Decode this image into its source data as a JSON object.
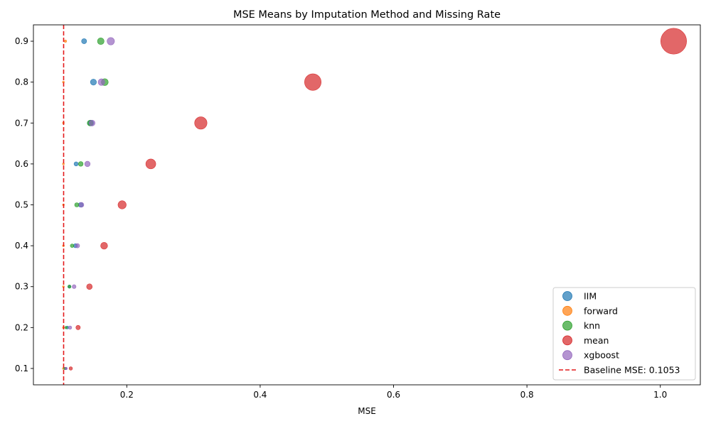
{
  "chart_data": {
    "type": "scatter",
    "title": "MSE Means by Imputation Method and Missing Rate",
    "xlabel": "MSE",
    "ylabel": "",
    "xlim": [
      0.06,
      1.06
    ],
    "ylim": [
      0.06,
      0.94
    ],
    "xticks": [
      0.2,
      0.4,
      0.6,
      0.8,
      1.0
    ],
    "xtick_labels": [
      "0.2",
      "0.4",
      "0.6",
      "0.8",
      "1.0"
    ],
    "yticks": [
      0.1,
      0.2,
      0.3,
      0.4,
      0.5,
      0.6,
      0.7,
      0.8,
      0.9
    ],
    "ytick_labels": [
      "0.1",
      "0.2",
      "0.3",
      "0.4",
      "0.5",
      "0.6",
      "0.7",
      "0.8",
      "0.9"
    ],
    "grid": false,
    "legend_position": "lower-right",
    "marker_size_encodes": "MSE",
    "series": [
      {
        "name": "IIM",
        "color": "#1f77b4",
        "points": [
          {
            "x": 0.108,
            "y": 0.1
          },
          {
            "x": 0.111,
            "y": 0.2
          },
          {
            "x": 0.114,
            "y": 0.3
          },
          {
            "x": 0.123,
            "y": 0.4
          },
          {
            "x": 0.131,
            "y": 0.5
          },
          {
            "x": 0.124,
            "y": 0.6
          },
          {
            "x": 0.146,
            "y": 0.7
          },
          {
            "x": 0.15,
            "y": 0.8
          },
          {
            "x": 0.136,
            "y": 0.9
          }
        ]
      },
      {
        "name": "forward",
        "color": "#ff7f0e",
        "points": [
          {
            "x": 0.105,
            "y": 0.1
          },
          {
            "x": 0.105,
            "y": 0.2
          },
          {
            "x": 0.105,
            "y": 0.3
          },
          {
            "x": 0.105,
            "y": 0.4
          },
          {
            "x": 0.105,
            "y": 0.5
          },
          {
            "x": 0.105,
            "y": 0.6
          },
          {
            "x": 0.105,
            "y": 0.7
          },
          {
            "x": 0.105,
            "y": 0.8
          },
          {
            "x": 0.108,
            "y": 0.9
          }
        ]
      },
      {
        "name": "knn",
        "color": "#2ca02c",
        "points": [
          {
            "x": 0.107,
            "y": 0.1
          },
          {
            "x": 0.109,
            "y": 0.2
          },
          {
            "x": 0.114,
            "y": 0.3
          },
          {
            "x": 0.118,
            "y": 0.4
          },
          {
            "x": 0.125,
            "y": 0.5
          },
          {
            "x": 0.131,
            "y": 0.6
          },
          {
            "x": 0.145,
            "y": 0.7
          },
          {
            "x": 0.167,
            "y": 0.8
          },
          {
            "x": 0.161,
            "y": 0.9
          }
        ]
      },
      {
        "name": "mean",
        "color": "#d62728",
        "points": [
          {
            "x": 0.116,
            "y": 0.1
          },
          {
            "x": 0.127,
            "y": 0.2
          },
          {
            "x": 0.144,
            "y": 0.3
          },
          {
            "x": 0.166,
            "y": 0.4
          },
          {
            "x": 0.193,
            "y": 0.5
          },
          {
            "x": 0.236,
            "y": 0.6
          },
          {
            "x": 0.311,
            "y": 0.7
          },
          {
            "x": 0.479,
            "y": 0.8
          },
          {
            "x": 1.02,
            "y": 0.9
          }
        ]
      },
      {
        "name": "xgboost",
        "color": "#9467bd",
        "points": [
          {
            "x": 0.109,
            "y": 0.1
          },
          {
            "x": 0.115,
            "y": 0.2
          },
          {
            "x": 0.121,
            "y": 0.3
          },
          {
            "x": 0.126,
            "y": 0.4
          },
          {
            "x": 0.132,
            "y": 0.5
          },
          {
            "x": 0.141,
            "y": 0.6
          },
          {
            "x": 0.148,
            "y": 0.7
          },
          {
            "x": 0.162,
            "y": 0.8
          },
          {
            "x": 0.176,
            "y": 0.9
          }
        ]
      }
    ],
    "baseline": {
      "value": 0.1053,
      "label": "Baseline MSE: 0.1053",
      "color": "#e31a1c"
    }
  }
}
